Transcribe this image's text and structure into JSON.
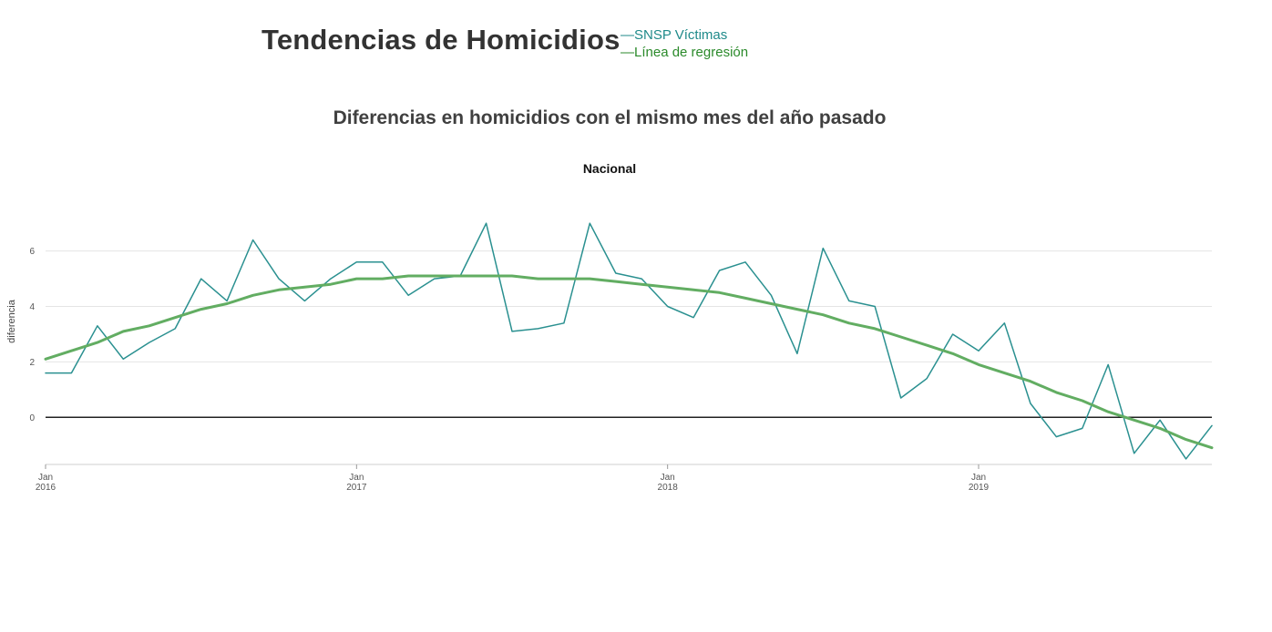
{
  "title": "Tendencias de Homicidios",
  "subtitle": "Diferencias en homicidios con el mismo mes del año pasado",
  "legend": {
    "items": [
      {
        "label": "—SNSP Víctimas",
        "color": "#1f8a8a"
      },
      {
        "label": "—Línea de regresión",
        "color": "#2b8a2b"
      }
    ]
  },
  "chart_data": {
    "type": "line",
    "facet": "Nacional",
    "ylabel": "diferencia",
    "xlabel": "",
    "ylim": [
      -1.7,
      7.5
    ],
    "yticks": [
      0,
      2,
      4,
      6
    ],
    "xticks": [
      {
        "label": "Jan",
        "year": "2016",
        "index": 0
      },
      {
        "label": "Jan",
        "year": "2017",
        "index": 12
      },
      {
        "label": "Jan",
        "year": "2018",
        "index": 24
      },
      {
        "label": "Jan",
        "year": "2019",
        "index": 36
      }
    ],
    "x_start": "2016-01",
    "x_end": "2019-10",
    "grid": true,
    "zero_line": true,
    "series": [
      {
        "name": "SNSP Víctimas",
        "color": "#2a9090",
        "values": [
          1.6,
          1.6,
          3.3,
          2.1,
          2.7,
          3.2,
          5.0,
          4.2,
          6.4,
          5.0,
          4.2,
          5.0,
          5.6,
          5.6,
          4.4,
          5.0,
          5.1,
          7.0,
          3.1,
          3.2,
          3.4,
          7.0,
          5.2,
          5.0,
          4.0,
          3.6,
          5.3,
          5.6,
          4.4,
          2.3,
          6.1,
          4.2,
          4.0,
          0.7,
          1.4,
          3.0,
          2.4,
          3.4,
          0.5,
          -0.7,
          -0.4,
          1.9,
          -1.3,
          -0.1,
          -1.5,
          -0.3
        ]
      },
      {
        "name": "Línea de regresión",
        "color": "#62ad62",
        "values": [
          2.1,
          2.4,
          2.7,
          3.1,
          3.3,
          3.6,
          3.9,
          4.1,
          4.4,
          4.6,
          4.7,
          4.8,
          5.0,
          5.0,
          5.1,
          5.1,
          5.1,
          5.1,
          5.1,
          5.0,
          5.0,
          5.0,
          4.9,
          4.8,
          4.7,
          4.6,
          4.5,
          4.3,
          4.1,
          3.9,
          3.7,
          3.4,
          3.2,
          2.9,
          2.6,
          2.3,
          1.9,
          1.6,
          1.3,
          0.9,
          0.6,
          0.2,
          -0.1,
          -0.4,
          -0.8,
          -1.1
        ]
      }
    ]
  }
}
